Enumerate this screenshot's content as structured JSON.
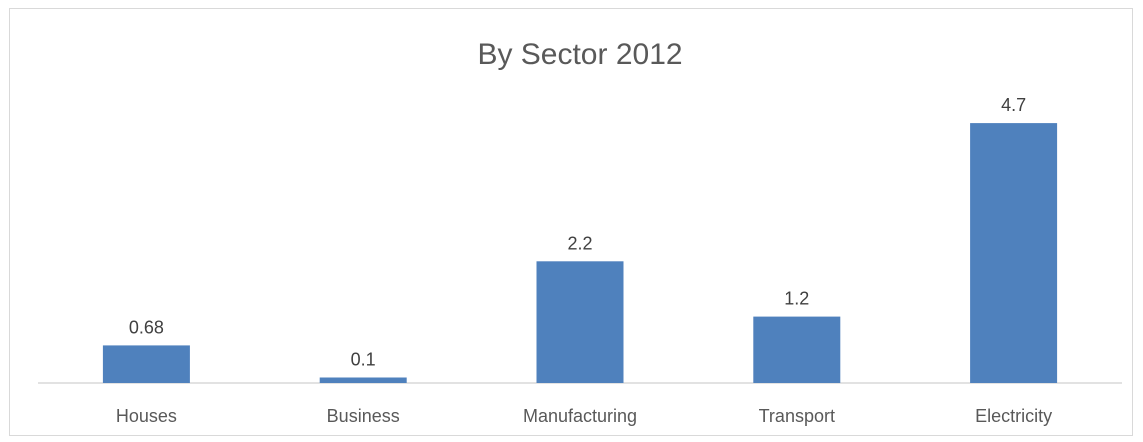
{
  "chart_data": {
    "type": "bar",
    "title": "By Sector 2012",
    "categories": [
      "Houses",
      "Business",
      "Manufacturing",
      "Transport",
      "Electricity"
    ],
    "values": [
      0.68,
      0.1,
      2.2,
      1.2,
      4.7
    ],
    "data_labels": [
      "0.68",
      "0.1",
      "2.2",
      "1.2",
      "4.7"
    ],
    "xlabel": "",
    "ylabel": "",
    "ylim": [
      0,
      5
    ],
    "grid": false,
    "legend": "none",
    "bar_color": "#4f81bd"
  }
}
